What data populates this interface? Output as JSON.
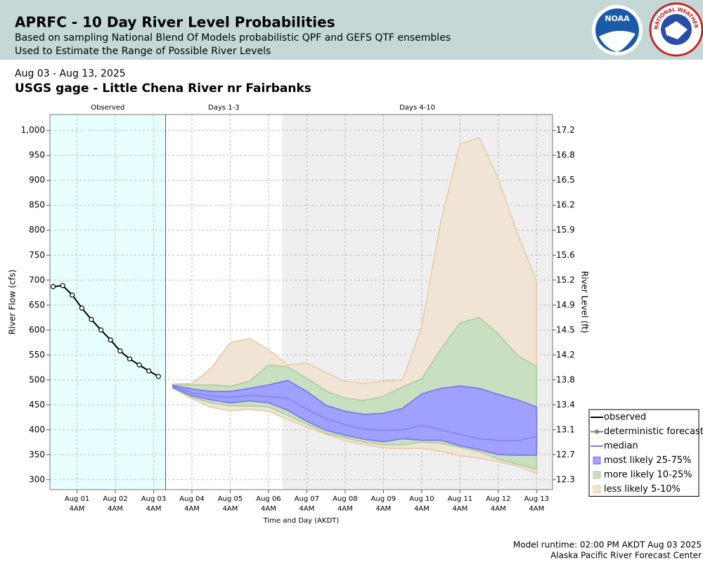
{
  "header": {
    "title": "APRFC - 10 Day River Level Probabilities",
    "subtitle_lines": [
      "Based on sampling National Blend Of Models probabilistic QPF and GEFS QTF ensembles",
      "Used to Estimate the Range of Possible River Levels"
    ],
    "logos": [
      "NOAA",
      "NATIONAL WEATHER SERVICE"
    ]
  },
  "chart_data": {
    "type": "probability-band",
    "subtitle": "Aug 03 - Aug 13, 2025",
    "title": "USGS gage - Little Chena River nr Fairbanks",
    "x_label": "Time and Day (AKDT)",
    "y_label": "River Flow (cfs)",
    "y2_label": "River Level (ft)",
    "xlim": [
      "2025-07-31 11:00",
      "2025-08-13 14:00"
    ],
    "ylim": [
      280,
      1032
    ],
    "yticks": [
      300,
      350,
      400,
      450,
      500,
      550,
      600,
      650,
      700,
      750,
      800,
      850,
      900,
      950,
      {
        "value": 1000,
        "label": "1,000"
      }
    ],
    "y2ticks": [
      12.3,
      12.7,
      13.1,
      13.4,
      13.8,
      14.2,
      14.5,
      14.9,
      15.2,
      15.6,
      15.9,
      16.2,
      16.5,
      16.8,
      17.2
    ],
    "xticks": [
      {
        "value": "2025-08-01 04:00",
        "label": [
          "Aug 01",
          "4AM"
        ]
      },
      {
        "value": "2025-08-02 04:00",
        "label": [
          "Aug 02",
          "4AM"
        ]
      },
      {
        "value": "2025-08-03 04:00",
        "label": [
          "Aug 03",
          "4AM"
        ]
      },
      {
        "value": "2025-08-04 04:00",
        "label": [
          "Aug 04",
          "4AM"
        ]
      },
      {
        "value": "2025-08-05 04:00",
        "label": [
          "Aug 05",
          "4AM"
        ]
      },
      {
        "value": "2025-08-06 04:00",
        "label": [
          "Aug 06",
          "4AM"
        ]
      },
      {
        "value": "2025-08-07 04:00",
        "label": [
          "Aug 07",
          "4AM"
        ]
      },
      {
        "value": "2025-08-08 04:00",
        "label": [
          "Aug 08",
          "4AM"
        ]
      },
      {
        "value": "2025-08-09 04:00",
        "label": [
          "Aug 09",
          "4AM"
        ]
      },
      {
        "value": "2025-08-10 04:00",
        "label": [
          "Aug 10",
          "4AM"
        ]
      },
      {
        "value": "2025-08-11 04:00",
        "label": [
          "Aug 11",
          "4AM"
        ]
      },
      {
        "value": "2025-08-12 04:00",
        "label": [
          "Aug 12",
          "4AM"
        ]
      },
      {
        "value": "2025-08-13 04:00",
        "label": [
          "Aug 13",
          "4AM"
        ]
      }
    ],
    "grid": true,
    "regions": [
      {
        "label": "Observed",
        "start": "2025-07-31 11:00",
        "end": "2025-08-03 11:30",
        "color": "#e8ffff"
      },
      {
        "label": "Days 1-3",
        "start": "2025-08-03 11:30",
        "end": "2025-08-06 12:30",
        "color": "#ffffff"
      },
      {
        "label": "Days 4-10",
        "start": "2025-08-06 12:30",
        "end": "2025-08-13 14:00",
        "color": "#efefef"
      }
    ],
    "forecast_start_color": "#cc2222",
    "legend": "lower-right",
    "series": [
      {
        "name": "observed",
        "color": "#000000",
        "style": "line-marker",
        "x": [
          "2025-07-31 13:00",
          "2025-07-31 19:00",
          "2025-08-01 01:00",
          "2025-08-01 07:00",
          "2025-08-01 13:00",
          "2025-08-01 19:00",
          "2025-08-02 01:00",
          "2025-08-02 07:00",
          "2025-08-02 13:00",
          "2025-08-02 19:00",
          "2025-08-03 01:00",
          "2025-08-03 07:00"
        ],
        "values": [
          687,
          689,
          670,
          644,
          621,
          600,
          580,
          558,
          542,
          530,
          518,
          507
        ]
      },
      {
        "name": "deterministic forecast",
        "color": "#808080",
        "style": "line-marker"
      },
      {
        "name": "median",
        "color": "#8080ff",
        "style": "line",
        "x": [
          "2025-08-03 16:00",
          "2025-08-04 04:00",
          "2025-08-04 16:00",
          "2025-08-05 04:00",
          "2025-08-05 16:00",
          "2025-08-06 04:00",
          "2025-08-06 16:00",
          "2025-08-07 04:00",
          "2025-08-07 16:00",
          "2025-08-08 04:00",
          "2025-08-08 16:00",
          "2025-08-09 04:00",
          "2025-08-09 16:00",
          "2025-08-10 04:00",
          "2025-08-10 16:00",
          "2025-08-11 04:00",
          "2025-08-11 16:00",
          "2025-08-12 04:00",
          "2025-08-12 16:00",
          "2025-08-13 04:00"
        ],
        "values": [
          487,
          474,
          468,
          465,
          469,
          467,
          463,
          441,
          422,
          410,
          401,
          399,
          400,
          409,
          400,
          391,
          382,
          379,
          378,
          387
        ]
      },
      {
        "name": "most likely 25-75%",
        "color": "#a0a0ff",
        "edge": "#7070f0",
        "style": "band",
        "x": [
          "2025-08-03 16:00",
          "2025-08-04 04:00",
          "2025-08-04 16:00",
          "2025-08-05 04:00",
          "2025-08-05 16:00",
          "2025-08-06 04:00",
          "2025-08-06 16:00",
          "2025-08-07 04:00",
          "2025-08-07 16:00",
          "2025-08-08 04:00",
          "2025-08-08 16:00",
          "2025-08-09 04:00",
          "2025-08-09 16:00",
          "2025-08-10 04:00",
          "2025-08-10 16:00",
          "2025-08-11 04:00",
          "2025-08-11 16:00",
          "2025-08-12 04:00",
          "2025-08-12 16:00",
          "2025-08-13 04:00"
        ],
        "upper": [
          489,
          482,
          477,
          477,
          483,
          490,
          499,
          477,
          449,
          437,
          431,
          433,
          443,
          472,
          483,
          488,
          483,
          471,
          460,
          446
        ],
        "lower": [
          485,
          468,
          460,
          454,
          458,
          454,
          439,
          417,
          399,
          389,
          381,
          376,
          382,
          379,
          379,
          368,
          360,
          350,
          349,
          349
        ]
      },
      {
        "name": "more likely 10-25%",
        "color": "#c8dfc0",
        "edge": "#a8cc9c",
        "style": "band",
        "x": [
          "2025-08-03 16:00",
          "2025-08-04 04:00",
          "2025-08-04 16:00",
          "2025-08-05 04:00",
          "2025-08-05 16:00",
          "2025-08-06 04:00",
          "2025-08-06 16:00",
          "2025-08-07 04:00",
          "2025-08-07 16:00",
          "2025-08-08 04:00",
          "2025-08-08 16:00",
          "2025-08-09 04:00",
          "2025-08-09 16:00",
          "2025-08-10 04:00",
          "2025-08-10 16:00",
          "2025-08-11 04:00",
          "2025-08-11 16:00",
          "2025-08-12 04:00",
          "2025-08-12 16:00",
          "2025-08-13 04:00"
        ],
        "upper": [
          490,
          490,
          490,
          487,
          497,
          530,
          526,
          503,
          478,
          463,
          459,
          467,
          486,
          502,
          562,
          614,
          625,
          592,
          549,
          527
        ],
        "lower": [
          484,
          465,
          454,
          448,
          448,
          446,
          429,
          411,
          393,
          384,
          375,
          370,
          370,
          375,
          373,
          365,
          356,
          341,
          331,
          321
        ]
      },
      {
        "name": "less likely 5-10%",
        "color": "#f0e4d4",
        "edge": "#e8c8a4",
        "style": "band",
        "x": [
          "2025-08-03 16:00",
          "2025-08-04 04:00",
          "2025-08-04 16:00",
          "2025-08-05 04:00",
          "2025-08-05 16:00",
          "2025-08-06 04:00",
          "2025-08-06 16:00",
          "2025-08-07 04:00",
          "2025-08-07 16:00",
          "2025-08-08 04:00",
          "2025-08-08 16:00",
          "2025-08-09 04:00",
          "2025-08-09 16:00",
          "2025-08-10 04:00",
          "2025-08-10 16:00",
          "2025-08-11 04:00",
          "2025-08-11 16:00",
          "2025-08-12 04:00",
          "2025-08-12 16:00",
          "2025-08-13 04:00"
        ],
        "upper": [
          492,
          493,
          523,
          575,
          583,
          561,
          530,
          534,
          515,
          497,
          493,
          497,
          500,
          607,
          818,
          973,
          986,
          903,
          793,
          699
        ],
        "lower": [
          483,
          462,
          445,
          438,
          441,
          437,
          421,
          405,
          391,
          378,
          370,
          364,
          362,
          363,
          357,
          348,
          343,
          336,
          327,
          313
        ]
      }
    ]
  },
  "footer": {
    "lines": [
      "Model runtime: 02:00 PM AKDT Aug 03 2025",
      "Alaska Pacific River Forecast Center"
    ]
  }
}
